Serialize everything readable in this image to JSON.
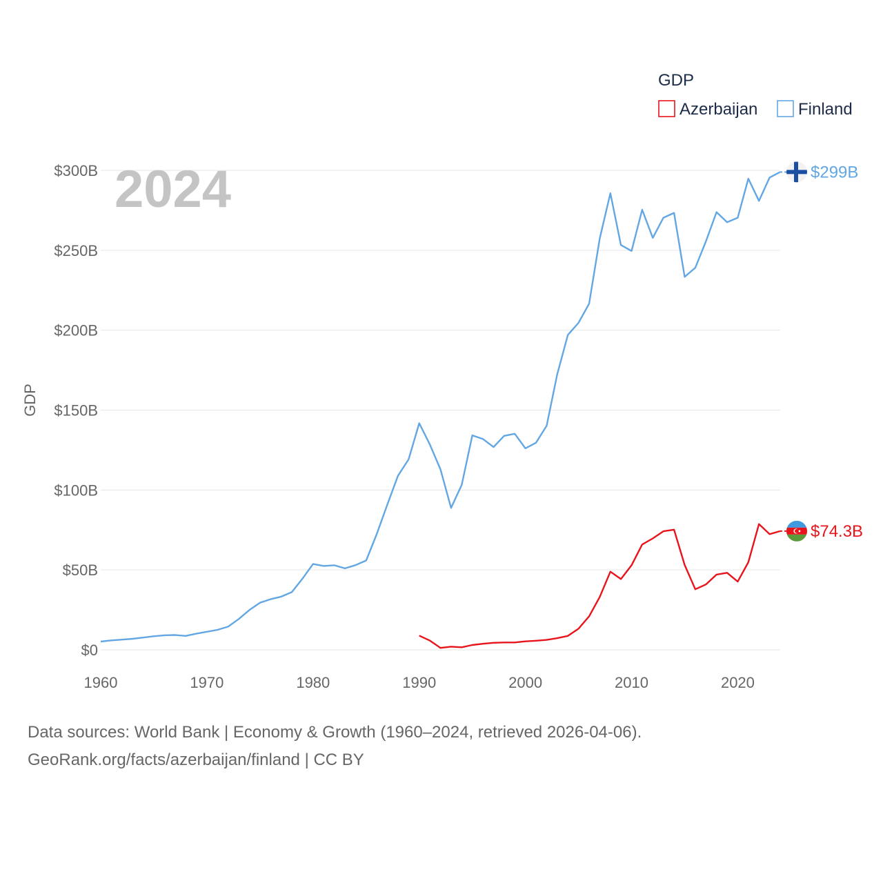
{
  "chart_data": {
    "type": "line",
    "title": "",
    "year_watermark": "2024",
    "ylabel": "GDP",
    "xlabel": "",
    "xlim": [
      1960,
      2024
    ],
    "ylim": [
      0,
      300
    ],
    "y_unit": "billion USD",
    "x_ticks": [
      "1960",
      "1970",
      "1980",
      "1990",
      "2000",
      "2010",
      "2020"
    ],
    "y_ticks": [
      {
        "value": 0,
        "label": "$0"
      },
      {
        "value": 50,
        "label": "$50B"
      },
      {
        "value": 100,
        "label": "$100B"
      },
      {
        "value": 150,
        "label": "$150B"
      },
      {
        "value": 200,
        "label": "$200B"
      },
      {
        "value": 250,
        "label": "$250B"
      },
      {
        "value": 300,
        "label": "$300B"
      }
    ],
    "legend": {
      "title": "GDP",
      "placement": "top-right"
    },
    "series": [
      {
        "name": "Azerbaijan",
        "color": "#e8141c",
        "end_label": "$74.3B",
        "flag": "azerbaijan-flag",
        "x": [
          1990,
          1991,
          1992,
          1993,
          1994,
          1995,
          1996,
          1997,
          1998,
          1999,
          2000,
          2001,
          2002,
          2003,
          2004,
          2005,
          2006,
          2007,
          2008,
          2009,
          2010,
          2011,
          2012,
          2013,
          2014,
          2015,
          2016,
          2017,
          2018,
          2019,
          2020,
          2021,
          2022,
          2023,
          2024
        ],
        "values": [
          8.9,
          5.8,
          1.2,
          2.0,
          1.6,
          3.0,
          3.8,
          4.4,
          4.6,
          4.6,
          5.3,
          5.7,
          6.2,
          7.3,
          8.7,
          13.2,
          21.0,
          33.1,
          48.9,
          44.3,
          52.9,
          65.9,
          69.7,
          74.2,
          75.2,
          53.1,
          37.9,
          40.9,
          47.1,
          48.2,
          42.7,
          54.8,
          78.7,
          72.4,
          74.3
        ]
      },
      {
        "name": "Finland",
        "color": "#62a7e3",
        "end_label": "$299B",
        "flag": "finland-flag",
        "x": [
          1960,
          1961,
          1962,
          1963,
          1964,
          1965,
          1966,
          1967,
          1968,
          1969,
          1970,
          1971,
          1972,
          1973,
          1974,
          1975,
          1976,
          1977,
          1978,
          1979,
          1980,
          1981,
          1982,
          1983,
          1984,
          1985,
          1986,
          1987,
          1988,
          1989,
          1990,
          1991,
          1992,
          1993,
          1994,
          1995,
          1996,
          1997,
          1998,
          1999,
          2000,
          2001,
          2002,
          2003,
          2004,
          2005,
          2006,
          2007,
          2008,
          2009,
          2010,
          2011,
          2012,
          2013,
          2014,
          2015,
          2016,
          2017,
          2018,
          2019,
          2020,
          2021,
          2022,
          2023,
          2024
        ],
        "values": [
          5.2,
          5.9,
          6.4,
          6.9,
          7.7,
          8.5,
          9.1,
          9.3,
          8.7,
          10.1,
          11.3,
          12.5,
          14.5,
          19.3,
          24.9,
          29.5,
          31.7,
          33.3,
          36.1,
          44.5,
          53.7,
          52.5,
          52.9,
          51.0,
          53.0,
          55.9,
          72.5,
          90.9,
          108.9,
          119.2,
          141.8,
          128.5,
          112.9,
          88.8,
          103.2,
          134.2,
          131.9,
          126.9,
          133.9,
          135.2,
          126.1,
          129.6,
          140.2,
          172.5,
          197.1,
          204.6,
          216.6,
          257.4,
          285.7,
          253.3,
          249.6,
          275.4,
          257.8,
          270.4,
          273.4,
          233.4,
          239.1,
          255.6,
          273.9,
          267.6,
          270.4,
          294.8,
          280.9,
          295.5,
          299.0
        ]
      }
    ]
  },
  "footer": {
    "line1": "Data sources: World Bank | Economy & Growth (1960–2024, retrieved 2026-04-06).",
    "line2": "GeoRank.org/facts/azerbaijan/finland | CC BY"
  }
}
